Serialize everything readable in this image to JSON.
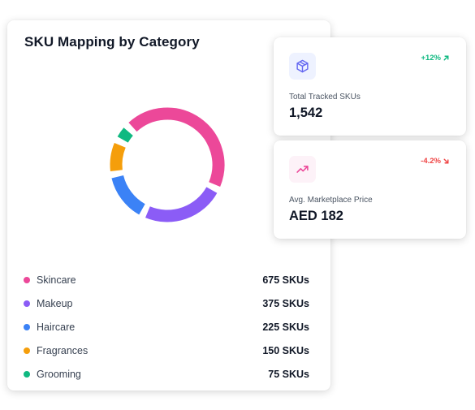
{
  "main_card": {
    "title": "SKU Mapping by Category"
  },
  "chart_data": {
    "type": "pie",
    "style": "donut",
    "title": "SKU Mapping by Category",
    "categories": [
      "Skincare",
      "Makeup",
      "Haircare",
      "Fragrances",
      "Grooming"
    ],
    "values": [
      675,
      375,
      225,
      150,
      75
    ],
    "unit": "SKUs",
    "colors": [
      "#ec4899",
      "#8b5cf6",
      "#3b82f6",
      "#f59e0b",
      "#10b981"
    ]
  },
  "legend": {
    "items": [
      {
        "label": "Skincare",
        "value_text": "675 SKUs",
        "color": "#ec4899"
      },
      {
        "label": "Makeup",
        "value_text": "375 SKUs",
        "color": "#8b5cf6"
      },
      {
        "label": "Haircare",
        "value_text": "225 SKUs",
        "color": "#3b82f6"
      },
      {
        "label": "Fragrances",
        "value_text": "150 SKUs",
        "color": "#f59e0b"
      },
      {
        "label": "Grooming",
        "value_text": "75 SKUs",
        "color": "#10b981"
      }
    ]
  },
  "stats": [
    {
      "icon": "box-icon",
      "icon_color": "#6366f1",
      "change": "+12%",
      "change_icon": "arrow-up-right-icon",
      "change_color": "#10b981",
      "label": "Total Tracked SKUs",
      "value": "1,542"
    },
    {
      "icon": "trending-up-icon",
      "icon_color": "#ec4899",
      "change": "-4.2%",
      "change_icon": "arrow-down-right-icon",
      "change_color": "#ef4444",
      "label": "Avg. Marketplace Price",
      "value": "AED 182"
    }
  ]
}
